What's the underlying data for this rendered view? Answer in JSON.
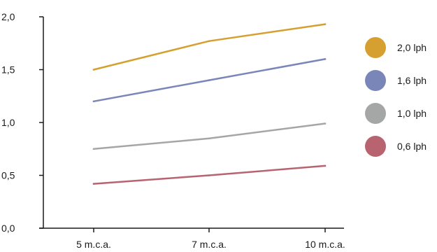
{
  "chart_data": {
    "type": "line",
    "title": "",
    "xlabel": "",
    "ylabel": "",
    "categories": [
      "5 m.c.a.",
      "7 m.c.a.",
      "10 m.c.a."
    ],
    "ylim": [
      0,
      2
    ],
    "yticks": [
      "0,0",
      "0,5",
      "1,0",
      "1,5",
      "2,0"
    ],
    "ytick_values": [
      0,
      0.5,
      1.0,
      1.5,
      2.0
    ],
    "grid": false,
    "legend_position": "right",
    "series": [
      {
        "name": "2,0 lph",
        "color": "#D6A030",
        "values": [
          1.5,
          1.77,
          1.93
        ]
      },
      {
        "name": "1,6 lph",
        "color": "#7B86B8",
        "values": [
          1.2,
          1.4,
          1.6
        ]
      },
      {
        "name": "1,0 lph",
        "color": "#A5A7A6",
        "values": [
          0.75,
          0.85,
          0.99
        ]
      },
      {
        "name": "0,6 lph",
        "color": "#B86470",
        "values": [
          0.42,
          0.5,
          0.59
        ]
      }
    ]
  }
}
